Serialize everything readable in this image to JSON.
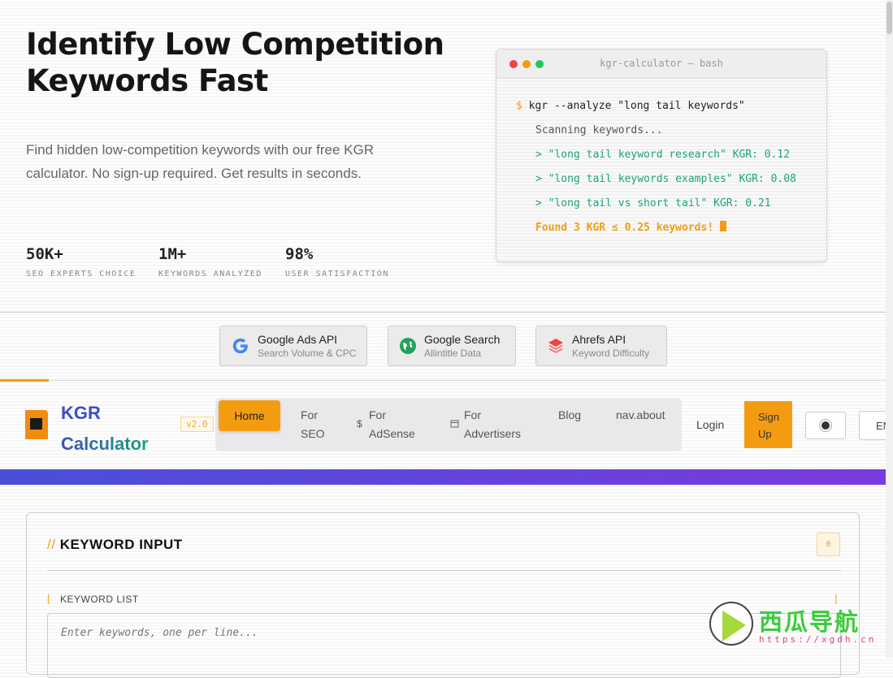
{
  "hero": {
    "title_line1": "Identify Low Competition",
    "title_line2": "Keywords Fast",
    "subtitle": "Find hidden low-competition keywords with our free KGR calculator. No sign-up required. Get results in seconds.",
    "stats": [
      {
        "value": "50K+",
        "label": "SEO EXPERTS CHOICE"
      },
      {
        "value": "1M+",
        "label": "KEYWORDS ANALYZED"
      },
      {
        "value": "98%",
        "label": "USER SATISFACTION"
      }
    ]
  },
  "terminal": {
    "title": "kgr-calculator — bash",
    "prompt": "$",
    "command": "kgr --analyze \"long tail keywords\"",
    "scanning": "Scanning keywords...",
    "results": [
      "> \"long tail keyword research\" KGR: 0.12",
      "> \"long tail keywords examples\" KGR: 0.08",
      "> \"long tail vs short tail\" KGR: 0.21"
    ],
    "found": "Found 3 KGR ≤ 0.25 keywords!"
  },
  "apis": [
    {
      "icon": "google-icon",
      "title": "Google Ads API",
      "sub": "Search Volume & CPC"
    },
    {
      "icon": "globe-icon",
      "title": "Google Search",
      "sub": "Allintitle Data"
    },
    {
      "icon": "layers-icon",
      "title": "Ahrefs API",
      "sub": "Keyword Difficulty"
    }
  ],
  "header": {
    "brand_line1": "KGR",
    "brand_line2": "Calculator",
    "version": "v2.0",
    "nav": [
      {
        "label": "Home"
      },
      {
        "label1": "For",
        "label2": "SEO"
      },
      {
        "icon": "$",
        "label1": "For",
        "label2": "AdSense"
      },
      {
        "label1": "For",
        "label2": "Advertisers"
      },
      {
        "label": "Blog"
      },
      {
        "label": "nav.about"
      }
    ],
    "login": "Login",
    "signup1": "Sign",
    "signup2": "Up",
    "lang": "EN"
  },
  "card": {
    "prefix": "//",
    "title": "KEYWORD INPUT",
    "count": "0",
    "list_label": "KEYWORD LIST",
    "placeholder": "Enter keywords, one per line..."
  },
  "watermark": {
    "name": "西瓜导航",
    "url": "https://xgdh.cn"
  },
  "colors": {
    "accent": "#f39c12",
    "blue": "#3b4fc4",
    "green": "#1aa57a",
    "gradient_start": "#4a4fd8",
    "gradient_end": "#7a3ae0"
  }
}
